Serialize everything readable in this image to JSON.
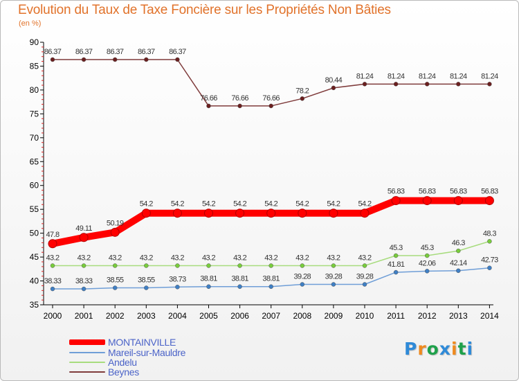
{
  "header": {
    "title": "Evolution du Taux de Taxe Foncière sur les Propriétés Non Bâties",
    "subtitle": "(en %)"
  },
  "logo": {
    "letters": [
      "P",
      "r",
      "o",
      "x",
      "i",
      "t",
      "i"
    ],
    "colors": [
      "#2f8ad8",
      "#ef8a1f",
      "#1fa14b",
      "#2f8ad8",
      "#ef8a1f",
      "#1fa14b",
      "#2f8ad8"
    ]
  },
  "chart_data": {
    "type": "line",
    "title": "Evolution du Taux de Taxe Foncière sur les Propriétés Non Bâties",
    "ylabel": "(en %)",
    "xlabel": "",
    "categories": [
      "2000",
      "2001",
      "2002",
      "2003",
      "2004",
      "2005",
      "2006",
      "2007",
      "2008",
      "2009",
      "2010",
      "2011",
      "2012",
      "2013",
      "2014"
    ],
    "ylim": [
      35,
      90
    ],
    "yticks": [
      "35",
      "40",
      "45",
      "50",
      "55",
      "60",
      "65",
      "70",
      "75",
      "80",
      "85",
      "90"
    ],
    "grid": false,
    "legend_position": "bottom-left",
    "series": [
      {
        "name": "MONTAINVILLE",
        "color": "#ff0000",
        "marker_color": "#ff0000",
        "emphasis": true,
        "values": [
          47.8,
          49.11,
          50.19,
          54.2,
          54.2,
          54.2,
          54.2,
          54.2,
          54.2,
          54.2,
          54.2,
          56.83,
          56.83,
          56.83,
          56.83
        ],
        "labels": [
          "47.8",
          "49.11",
          "50.19",
          "54.2",
          "54.2",
          "54.2",
          "54.2",
          "54.2",
          "54.2",
          "54.2",
          "54.2",
          "56.83",
          "56.83",
          "56.83",
          "56.83"
        ]
      },
      {
        "name": "Mareil-sur-Mauldre",
        "color": "#6f9ed7",
        "marker_color": "#3f7fc4",
        "values": [
          38.33,
          38.33,
          38.55,
          38.55,
          38.73,
          38.81,
          38.81,
          38.81,
          39.28,
          39.28,
          39.28,
          41.81,
          42.06,
          42.14,
          42.73
        ],
        "labels": [
          "38.33",
          "38.33",
          "38.55",
          "38.55",
          "38.73",
          "38.81",
          "38.81",
          "38.81",
          "39.28",
          "39.28",
          "39.28",
          "41.81",
          "42.06",
          "42.14",
          "42.73"
        ]
      },
      {
        "name": "Andelu",
        "color": "#a7dc7d",
        "marker_color": "#78cc3c",
        "values": [
          43.2,
          43.2,
          43.2,
          43.2,
          43.2,
          43.2,
          43.2,
          43.2,
          43.2,
          43.2,
          43.2,
          45.3,
          45.3,
          46.3,
          48.3
        ],
        "labels": [
          "43.2",
          "43.2",
          "43.2",
          "43.2",
          "43.2",
          "43.2",
          "43.2",
          "43.2",
          "43.2",
          "43.2",
          "43.2",
          "45.3",
          "45.3",
          "46.3",
          "48.3"
        ]
      },
      {
        "name": "Beynes",
        "color": "#7f3b3b",
        "marker_color": "#6b1f1f",
        "values": [
          86.37,
          86.37,
          86.37,
          86.37,
          86.37,
          76.66,
          76.66,
          76.66,
          78.2,
          80.44,
          81.24,
          81.24,
          81.24,
          81.24,
          81.24
        ],
        "labels": [
          "86.37",
          "86.37",
          "86.37",
          "86.37",
          "86.37",
          "76.66",
          "76.66",
          "76.66",
          "78.2",
          "80.44",
          "81.24",
          "81.24",
          "81.24",
          "81.24",
          "81.24"
        ]
      }
    ]
  }
}
